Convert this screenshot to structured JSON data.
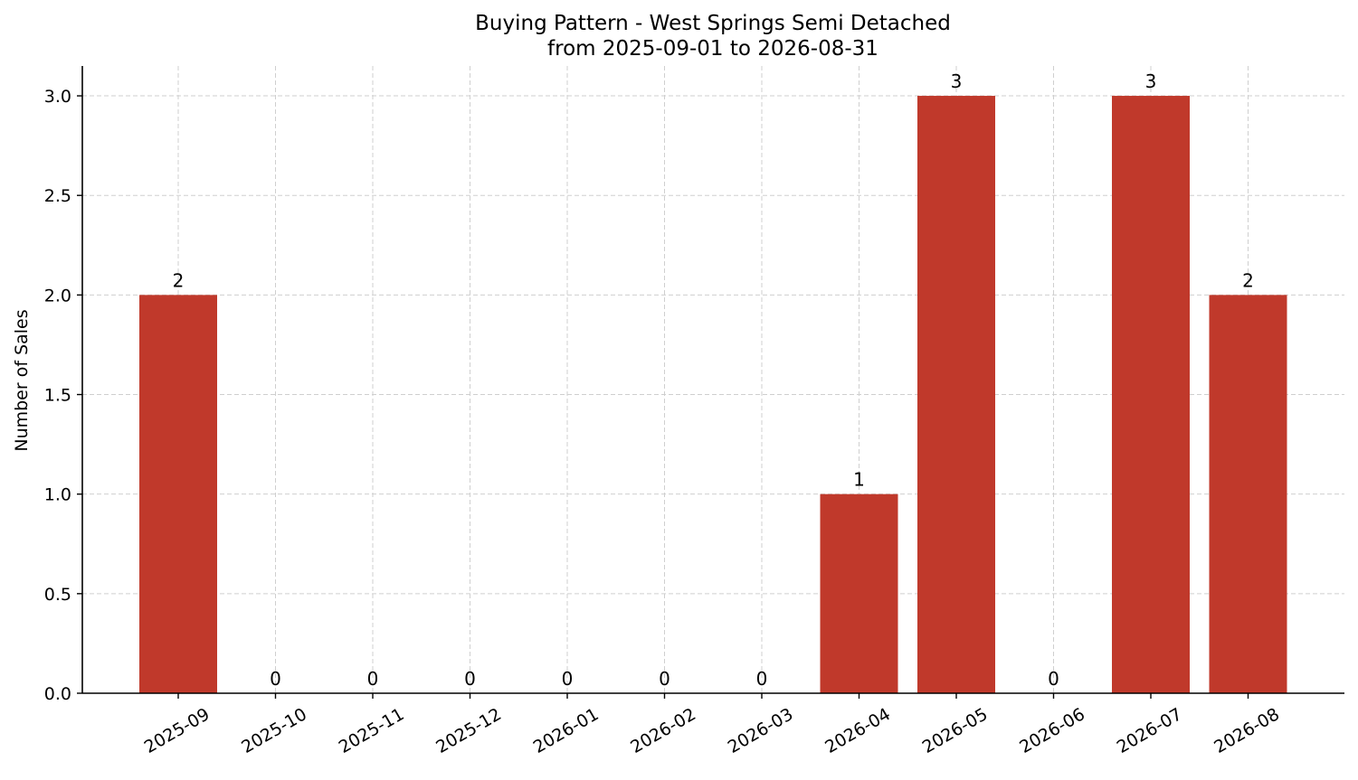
{
  "chart_data": {
    "type": "bar",
    "title": "Buying Pattern - West Springs Semi Detached",
    "subtitle": "from 2025-09-01 to 2026-08-31",
    "xlabel": "",
    "ylabel": "Number of Sales",
    "categories": [
      "2025-09",
      "2025-10",
      "2025-11",
      "2025-12",
      "2026-01",
      "2026-02",
      "2026-03",
      "2026-04",
      "2026-05",
      "2026-06",
      "2026-07",
      "2026-08"
    ],
    "values": [
      2,
      0,
      0,
      0,
      0,
      0,
      0,
      1,
      3,
      0,
      3,
      2
    ],
    "data_labels": [
      "2",
      "0",
      "0",
      "0",
      "0",
      "0",
      "0",
      "1",
      "3",
      "0",
      "3",
      "2"
    ],
    "ylim": [
      0,
      3.15
    ],
    "yticks": [
      "0.0",
      "0.5",
      "1.0",
      "1.5",
      "2.0",
      "2.5",
      "3.0"
    ],
    "grid": true,
    "bar_color": "#c0392b"
  }
}
